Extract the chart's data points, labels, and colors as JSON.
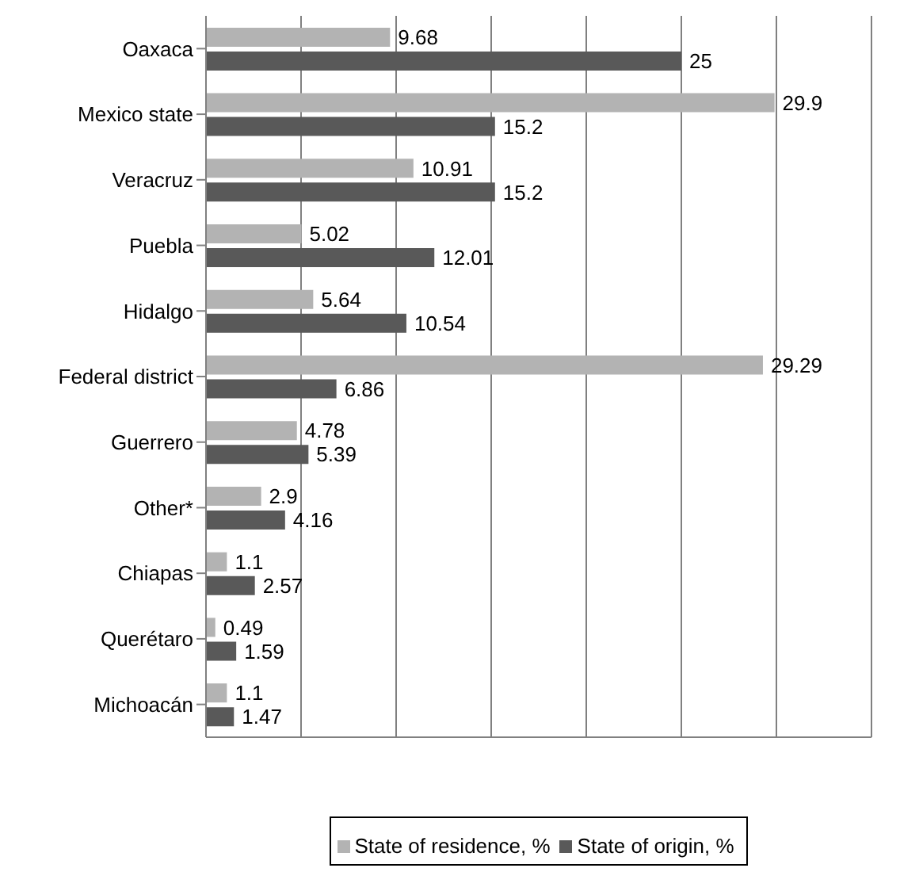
{
  "chart_data": {
    "type": "bar",
    "orientation": "horizontal",
    "categories": [
      "Oaxaca",
      "Mexico state",
      "Veracruz",
      "Puebla",
      "Hidalgo",
      "Federal district",
      "Guerrero",
      "Other*",
      "Chiapas",
      "Querétaro",
      "Michoacán"
    ],
    "series": [
      {
        "name": "State of residence, %",
        "color": "#b3b3b3",
        "values": [
          9.68,
          29.9,
          10.91,
          5.02,
          5.64,
          29.29,
          4.78,
          2.9,
          1.1,
          0.49,
          1.1
        ]
      },
      {
        "name": "State of origin, %",
        "color": "#595959",
        "values": [
          25,
          15.2,
          15.2,
          12.01,
          10.54,
          6.86,
          5.39,
          4.16,
          2.57,
          1.59,
          1.47
        ]
      }
    ],
    "xlim": [
      0,
      35
    ],
    "tick_labels": "y",
    "grid": "x",
    "legend": "bottom",
    "data_labels": true
  }
}
